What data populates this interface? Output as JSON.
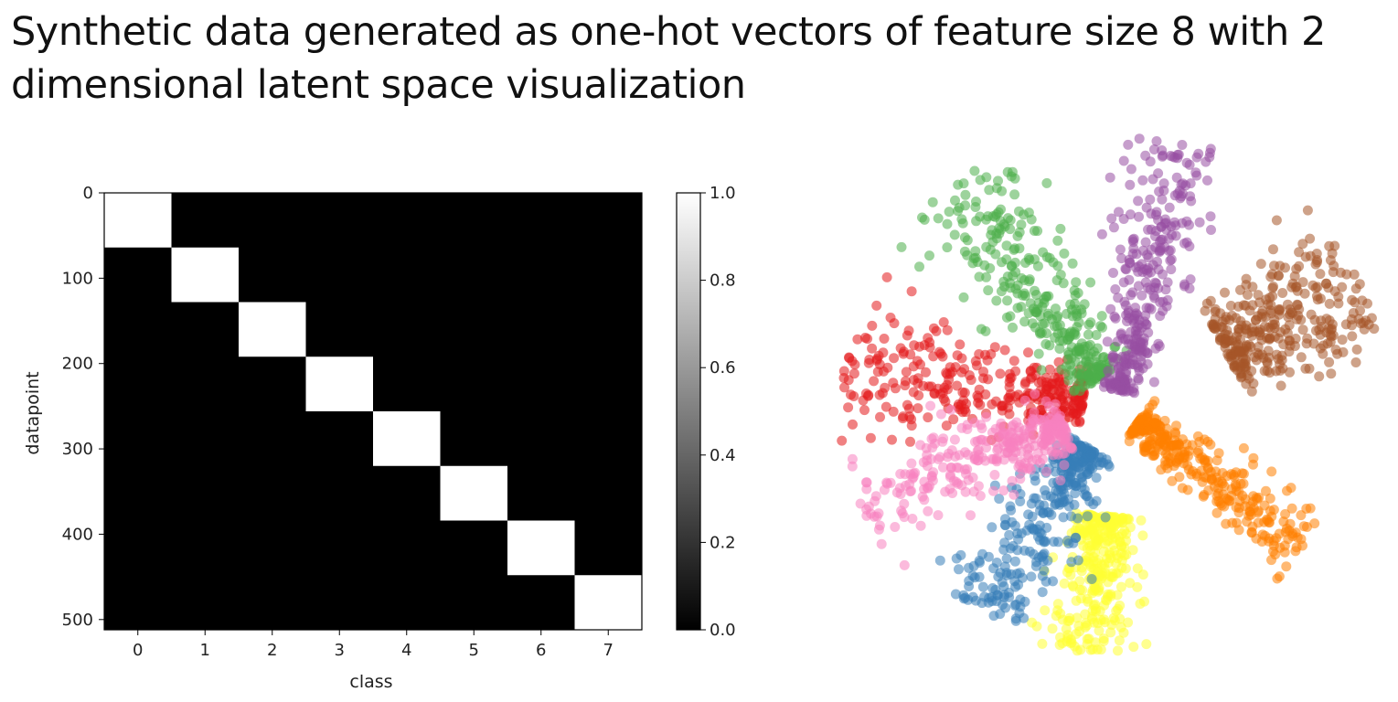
{
  "slide": {
    "title_line1": "Synthetic data generated as one-hot vectors of feature size 8 with 2",
    "title_line2": "dimensional latent space visualization"
  },
  "chart_data": [
    {
      "type": "heatmap",
      "xlabel": "class",
      "ylabel": "datapoint",
      "x_ticks": [
        "0",
        "1",
        "2",
        "3",
        "4",
        "5",
        "6",
        "7"
      ],
      "y_ticks": [
        "0",
        "100",
        "200",
        "300",
        "400",
        "500"
      ],
      "xlim": [
        -0.5,
        7.5
      ],
      "ylim": [
        512,
        0
      ],
      "colormap": "gray",
      "colorbar": {
        "ticks": [
          "0.0",
          "0.2",
          "0.4",
          "0.6",
          "0.8",
          "1.0"
        ],
        "range": [
          0.0,
          1.0
        ]
      },
      "cells": [
        {
          "class": 0,
          "rows": [
            0,
            64
          ],
          "value": 1.0
        },
        {
          "class": 1,
          "rows": [
            64,
            128
          ],
          "value": 1.0
        },
        {
          "class": 2,
          "rows": [
            128,
            192
          ],
          "value": 1.0
        },
        {
          "class": 3,
          "rows": [
            192,
            256
          ],
          "value": 1.0
        },
        {
          "class": 4,
          "rows": [
            256,
            320
          ],
          "value": 1.0
        },
        {
          "class": 5,
          "rows": [
            320,
            384
          ],
          "value": 1.0
        },
        {
          "class": 6,
          "rows": [
            384,
            448
          ],
          "value": 1.0
        },
        {
          "class": 7,
          "rows": [
            448,
            512
          ],
          "value": 1.0
        }
      ],
      "background_value": 0.0
    },
    {
      "type": "scatter",
      "axes": "hidden",
      "clusters": [
        {
          "color": "#e41a1c",
          "angle_deg": 171,
          "r_range": [
            0.12,
            1.0
          ],
          "spread": 0.09
        },
        {
          "color": "#4daf4a",
          "angle_deg": 125,
          "r_range": [
            0.12,
            1.0
          ],
          "spread": 0.09
        },
        {
          "color": "#984ea3",
          "angle_deg": 76,
          "r_range": [
            0.06,
            1.0
          ],
          "spread": 0.07
        },
        {
          "color": "#a65628",
          "angle_deg": 28,
          "r_range": [
            0.45,
            1.0
          ],
          "spread": 0.1
        },
        {
          "color": "#ff7f00",
          "angle_deg": -36,
          "r_range": [
            0.1,
            0.85
          ],
          "spread": 0.06
        },
        {
          "color": "#ffff33",
          "angle_deg": -96,
          "r_range": [
            0.4,
            0.9
          ],
          "spread": 0.07
        },
        {
          "color": "#377eb8",
          "angle_deg": -122,
          "r_range": [
            0.18,
            0.9
          ],
          "spread": 0.08
        },
        {
          "color": "#f781bf",
          "angle_deg": -160,
          "r_range": [
            0.2,
            1.0
          ],
          "spread": 0.08
        }
      ],
      "points_per_cluster": 320
    }
  ]
}
